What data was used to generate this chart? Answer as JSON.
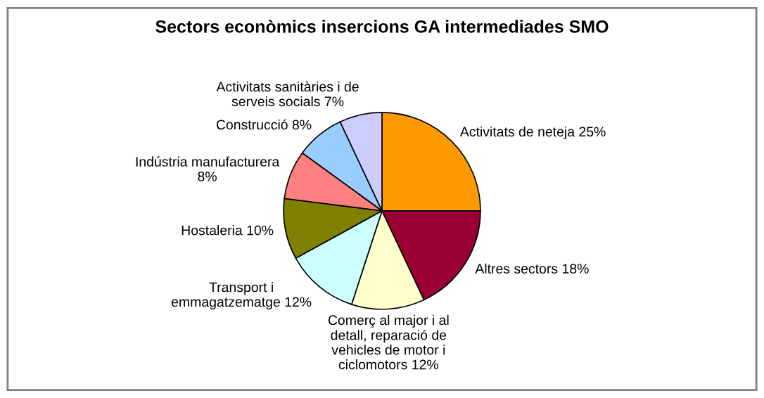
{
  "chart_data": {
    "type": "pie",
    "title": "Sectors econòmics insercions GA intermediades SMO",
    "categories": [
      "Activitats de neteja",
      "Altres sectors",
      "Comerç al major i al\ndetall, reparació de\nvehicles de motor i\nciclomotors",
      "Transport i\nemmagatzematge",
      "Hostaleria",
      "Indústria manufacturera",
      "Construcció",
      "Activitats sanitàries i de\nserveis socials"
    ],
    "values": [
      25,
      18,
      12,
      12,
      10,
      8,
      8,
      7
    ],
    "value_labels": [
      "25%",
      "18%",
      "12%",
      "12%",
      "10%",
      "8%",
      "8%",
      "7%"
    ],
    "colors": [
      "#ff9900",
      "#990033",
      "#ffffcc",
      "#ccffff",
      "#808000",
      "#ff8080",
      "#99ccff",
      "#ccccff"
    ],
    "legend": false
  }
}
